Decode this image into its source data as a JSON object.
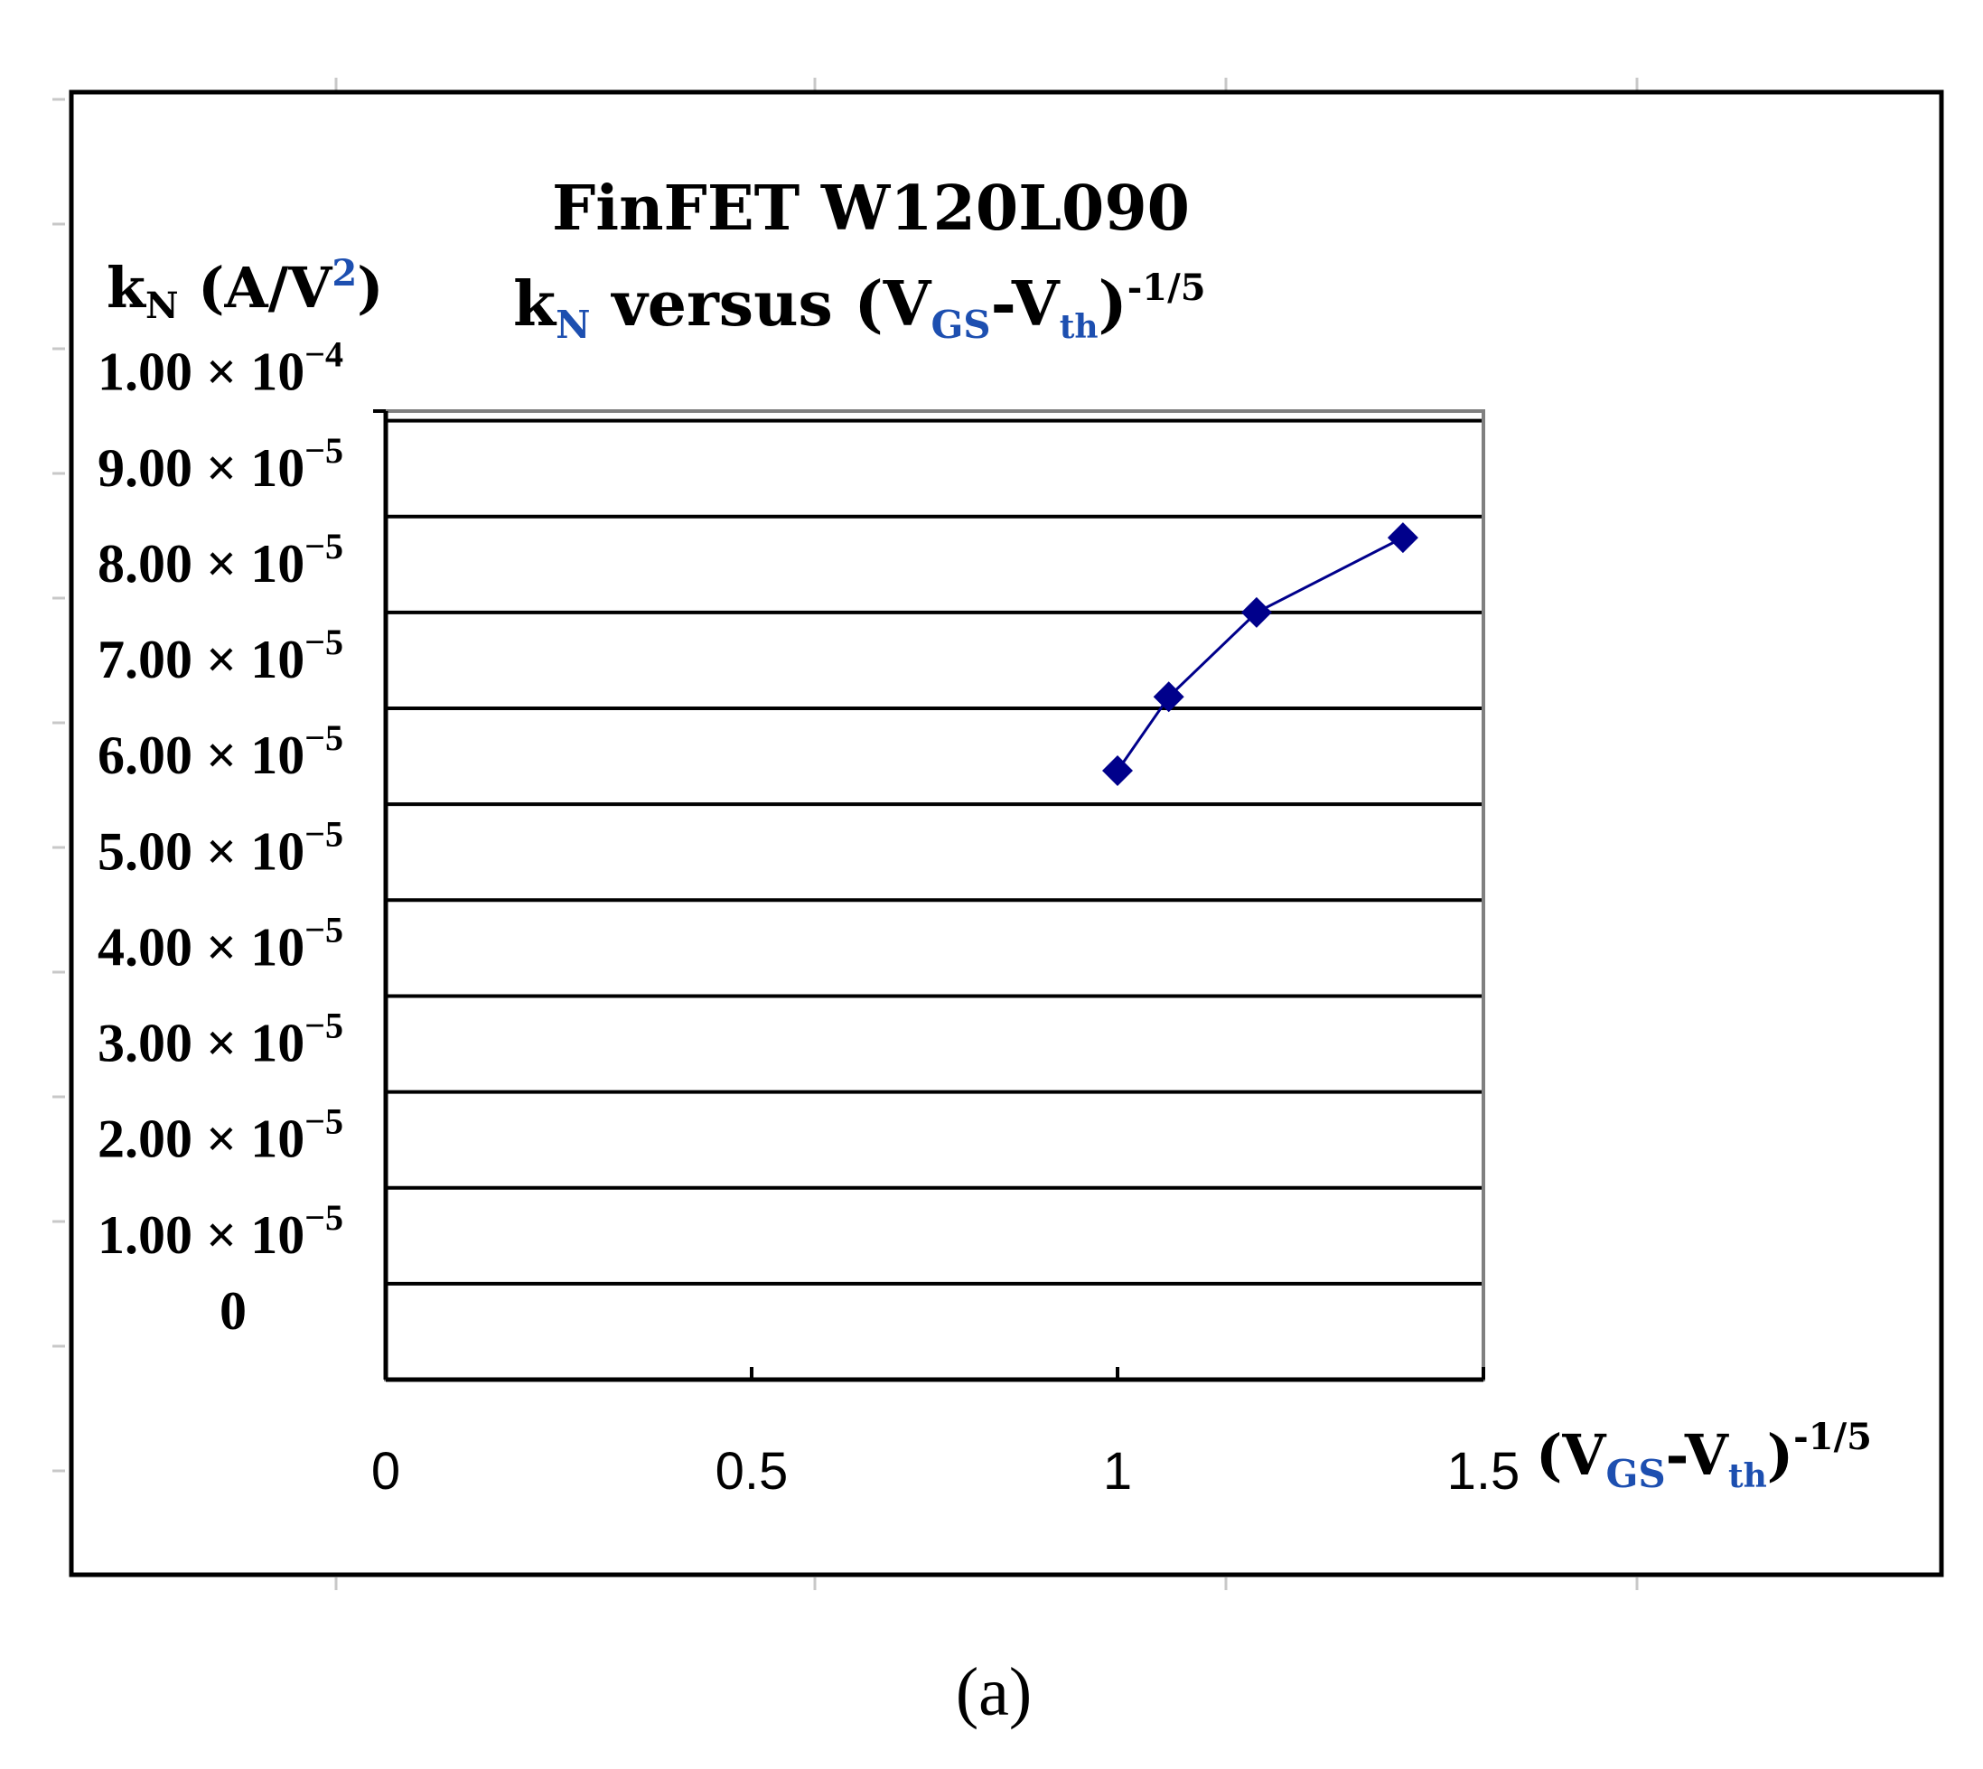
{
  "caption": "(a)",
  "colors": {
    "series": "#00008b",
    "grid": "#000000",
    "plot_border": "#808080"
  },
  "chart_data": {
    "type": "line",
    "title": "FinFET W120L090",
    "subtitle": {
      "k": "k",
      "k_sub": "N",
      "versus": "versus",
      "open": "(V",
      "sub1": "GS",
      "dash": "-V",
      "sub2": "th",
      "close": ")",
      "exp": "-1/5"
    },
    "ylabel": {
      "k": "k",
      "k_sub": "N",
      "unit": "(A/V",
      "sup": "2",
      "close": ")"
    },
    "xlabel": {
      "open": "(V",
      "sub1": "GS",
      "dash": "-V",
      "sub2": "th",
      "close": ")",
      "exp": "-1/5"
    },
    "xlim": [
      0,
      1.5
    ],
    "ylim": [
      0,
      0.0001
    ],
    "xticks": [
      {
        "value": 0,
        "label": "0"
      },
      {
        "value": 0.5,
        "label": "0.5"
      },
      {
        "value": 1,
        "label": "1"
      },
      {
        "value": 1.5,
        "label": "1.5"
      }
    ],
    "yticks": [
      {
        "value": 0,
        "mant": "0",
        "exp": ""
      },
      {
        "value": 1e-05,
        "mant": "1.00 × 10",
        "exp": "−5"
      },
      {
        "value": 2e-05,
        "mant": "2.00 × 10",
        "exp": "−5"
      },
      {
        "value": 3e-05,
        "mant": "3.00 × 10",
        "exp": "−5"
      },
      {
        "value": 4e-05,
        "mant": "4.00 × 10",
        "exp": "−5"
      },
      {
        "value": 5e-05,
        "mant": "5.00 × 10",
        "exp": "−5"
      },
      {
        "value": 6e-05,
        "mant": "6.00 × 10",
        "exp": "−5"
      },
      {
        "value": 7e-05,
        "mant": "7.00 × 10",
        "exp": "−5"
      },
      {
        "value": 8e-05,
        "mant": "8.00 × 10",
        "exp": "−5"
      },
      {
        "value": 9e-05,
        "mant": "9.00 × 10",
        "exp": "−5"
      },
      {
        "value": 0.0001,
        "mant": "1.00 × 10",
        "exp": "−4"
      }
    ],
    "grid": true,
    "series": [
      {
        "x": [
          1.0,
          1.07,
          1.19,
          1.39
        ],
        "y": [
          6.35e-05,
          7.12e-05,
          8e-05,
          8.78e-05
        ],
        "marker": "diamond"
      }
    ]
  }
}
